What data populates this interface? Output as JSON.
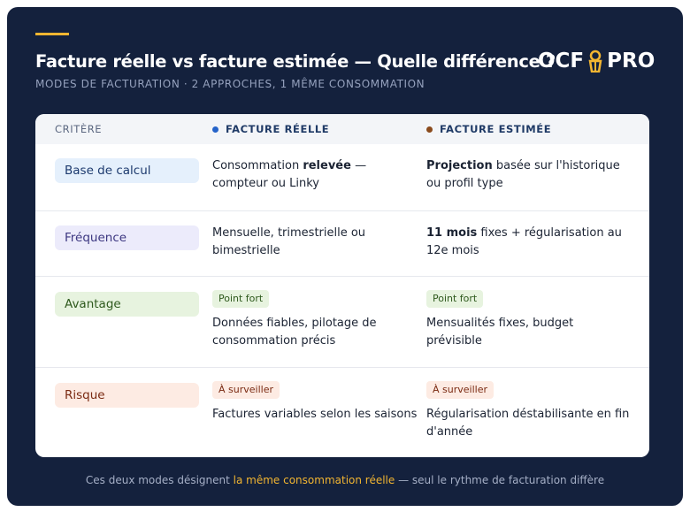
{
  "header": {
    "title": "Facture réelle vs facture estimée — Quelle différence ?",
    "subtitle": "MODES DE FACTURATION · 2 APPROCHES, 1 MÊME CONSOMMATION",
    "logo": {
      "left": "OCF",
      "right": "PRO"
    }
  },
  "table": {
    "columns": [
      {
        "label": "CRITÈRE"
      },
      {
        "label": "FACTURE RÉELLE",
        "dot": "#2563c9"
      },
      {
        "label": "FACTURE ESTIMÉE",
        "dot": "#8a4a1c"
      }
    ],
    "rows": [
      {
        "label": "Base de calcul",
        "bg": "#e5f0fc",
        "fg": "#1d3a6e",
        "cells": [
          {
            "text": [
              {
                "t": "Consommation "
              },
              {
                "t": "relevée",
                "strong": true
              },
              {
                "t": " — compteur ou Linky"
              }
            ]
          },
          {
            "text": [
              {
                "t": "Projection",
                "strong": true
              },
              {
                "t": " basée sur l'historique ou profil type"
              }
            ]
          }
        ]
      },
      {
        "label": "Fréquence",
        "bg": "#ecebfb",
        "fg": "#3b3680",
        "cells": [
          {
            "text": [
              {
                "t": "Mensuelle, trimestrielle ou bimestrielle"
              }
            ]
          },
          {
            "text": [
              {
                "t": "11 mois",
                "strong": true
              },
              {
                "t": " fixes + régularisation au 12e mois"
              }
            ]
          }
        ]
      },
      {
        "label": "Avantage",
        "bg": "#e7f3df",
        "fg": "#2f5a1e",
        "cells": [
          {
            "badge": "Point fort",
            "text": [
              {
                "t": "Données fiables, pilotage de consommation précis"
              }
            ]
          },
          {
            "badge": "Point fort",
            "text": [
              {
                "t": "Mensualités fixes, budget prévisible"
              }
            ]
          }
        ]
      },
      {
        "label": "Risque",
        "bg": "#fdebe3",
        "fg": "#7a2a12",
        "cells": [
          {
            "badge": "À surveiller",
            "text": [
              {
                "t": "Factures variables selon les saisons"
              }
            ]
          },
          {
            "badge": "À surveiller",
            "text": [
              {
                "t": "Régularisation déstabilisante en fin d'année"
              }
            ]
          }
        ]
      }
    ]
  },
  "footer": [
    {
      "t": "Ces deux modes désignent "
    },
    {
      "t": "la même consommation réelle",
      "strong": true
    },
    {
      "t": " — seul le rythme de facturation diffère"
    }
  ]
}
